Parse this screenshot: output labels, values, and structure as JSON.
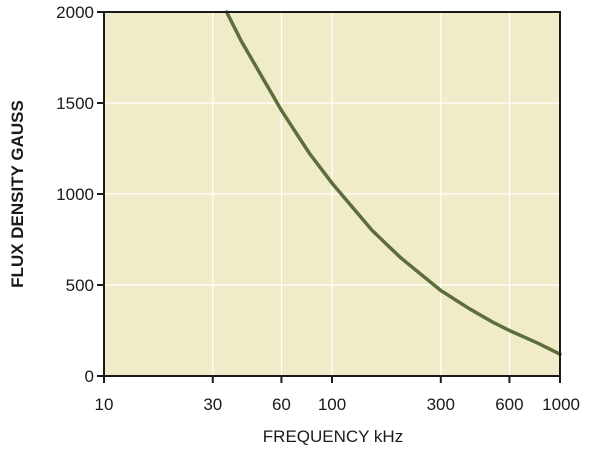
{
  "chart_data": {
    "type": "line",
    "xscale": "log",
    "xlim": [
      10,
      1000
    ],
    "ylim": [
      0,
      2000
    ],
    "xlabel": "FREQUENCY kHz",
    "ylabel": "FLUX DENSITY GAUSS",
    "xticks": [
      10,
      30,
      60,
      100,
      300,
      600,
      1000
    ],
    "xtick_labels": [
      "10",
      "30",
      "60",
      "100",
      "300",
      "600",
      "1000"
    ],
    "yticks": [
      0,
      500,
      1000,
      1500,
      2000
    ],
    "ytick_labels": [
      "0",
      "500",
      "1000",
      "1500",
      "2000"
    ],
    "grid": true,
    "series": [
      {
        "x": [
          34.5,
          40,
          50,
          60,
          70,
          80,
          100,
          150,
          200,
          300,
          400,
          500,
          600,
          800,
          1000
        ],
        "y": [
          2000,
          1840,
          1630,
          1460,
          1330,
          1220,
          1060,
          800,
          650,
          470,
          370,
          300,
          250,
          180,
          120
        ]
      }
    ],
    "colors": {
      "plot_background": "#f0ebc8",
      "grid": "#ffffff",
      "line": "#5e6d3c",
      "axis": "#1a1a1a"
    }
  }
}
